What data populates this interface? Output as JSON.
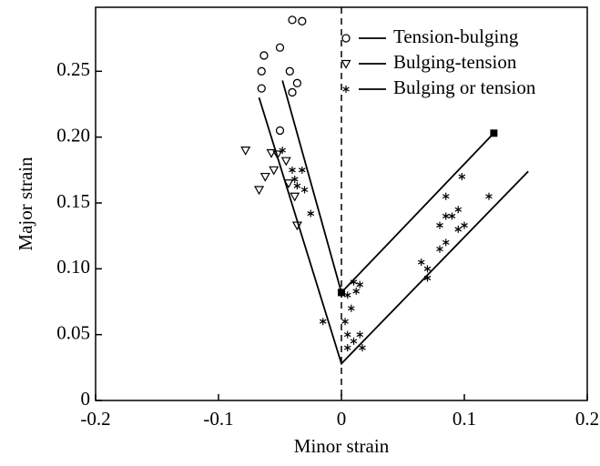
{
  "chart_data": {
    "type": "scatter",
    "xlabel": "Minor strain",
    "ylabel": "Major strain",
    "xlim": [
      -0.2,
      0.2
    ],
    "ylim": [
      0,
      0.2986
    ],
    "xticks": [
      -0.2,
      -0.1,
      0,
      0.1,
      0.2
    ],
    "yticks": [
      0,
      0.05,
      {
        "value": 0.1,
        "label": "0.10"
      },
      0.15,
      {
        "value": 0.2,
        "label": "0.20"
      },
      0.25
    ],
    "legend": "top-right",
    "series": [
      {
        "name": "Tension-bulging",
        "marker": "circle",
        "color": "#000000",
        "x": [
          -0.04,
          -0.032,
          -0.05,
          -0.063,
          -0.065,
          -0.042,
          -0.036,
          -0.04,
          -0.065,
          -0.05
        ],
        "values": [
          0.289,
          0.288,
          0.268,
          0.262,
          0.25,
          0.25,
          0.241,
          0.234,
          0.237,
          0.205
        ]
      },
      {
        "name": "Bulging-tension",
        "marker": "triangle",
        "color": "#000000",
        "x": [
          -0.078,
          -0.057,
          -0.052,
          -0.045,
          -0.055,
          -0.062,
          -0.067,
          -0.043,
          -0.038,
          -0.036
        ],
        "values": [
          0.19,
          0.188,
          0.187,
          0.182,
          0.175,
          0.17,
          0.16,
          0.165,
          0.155,
          0.133
        ]
      },
      {
        "name": "Bulging or tension",
        "marker": "star",
        "color": "#000000",
        "x": [
          -0.048,
          -0.04,
          -0.032,
          -0.038,
          -0.036,
          -0.03,
          -0.025,
          0.005,
          0.01,
          0.015,
          0.012,
          0.008,
          0.003,
          0.005,
          0.005,
          0.01,
          0.015,
          0.017,
          0.065,
          0.07,
          0.08,
          0.085,
          0.08,
          0.085,
          0.09,
          0.095,
          0.1,
          0.085,
          0.098,
          0.12,
          0.095,
          0.07,
          -0.015
        ],
        "values": [
          0.19,
          0.175,
          0.175,
          0.168,
          0.163,
          0.16,
          0.142,
          0.08,
          0.09,
          0.088,
          0.083,
          0.07,
          0.06,
          0.05,
          0.04,
          0.045,
          0.05,
          0.04,
          0.105,
          0.1,
          0.115,
          0.12,
          0.133,
          0.14,
          0.14,
          0.145,
          0.133,
          0.155,
          0.17,
          0.155,
          0.13,
          0.093,
          0.06
        ]
      },
      {
        "style": "line",
        "color": "#000000",
        "x": [
          -0.067,
          0,
          0.152
        ],
        "values": [
          0.23,
          0.028,
          0.174
        ]
      },
      {
        "style": "line",
        "color": "#000000",
        "x": [
          -0.048,
          0,
          0.124
        ],
        "values": [
          0.243,
          0.082,
          0.203
        ]
      },
      {
        "marker": "square",
        "color": "#000000",
        "x": [
          0,
          0.124
        ],
        "values": [
          0.082,
          0.203
        ]
      }
    ],
    "reference_line": {
      "x": 0,
      "style": "dashed"
    }
  }
}
